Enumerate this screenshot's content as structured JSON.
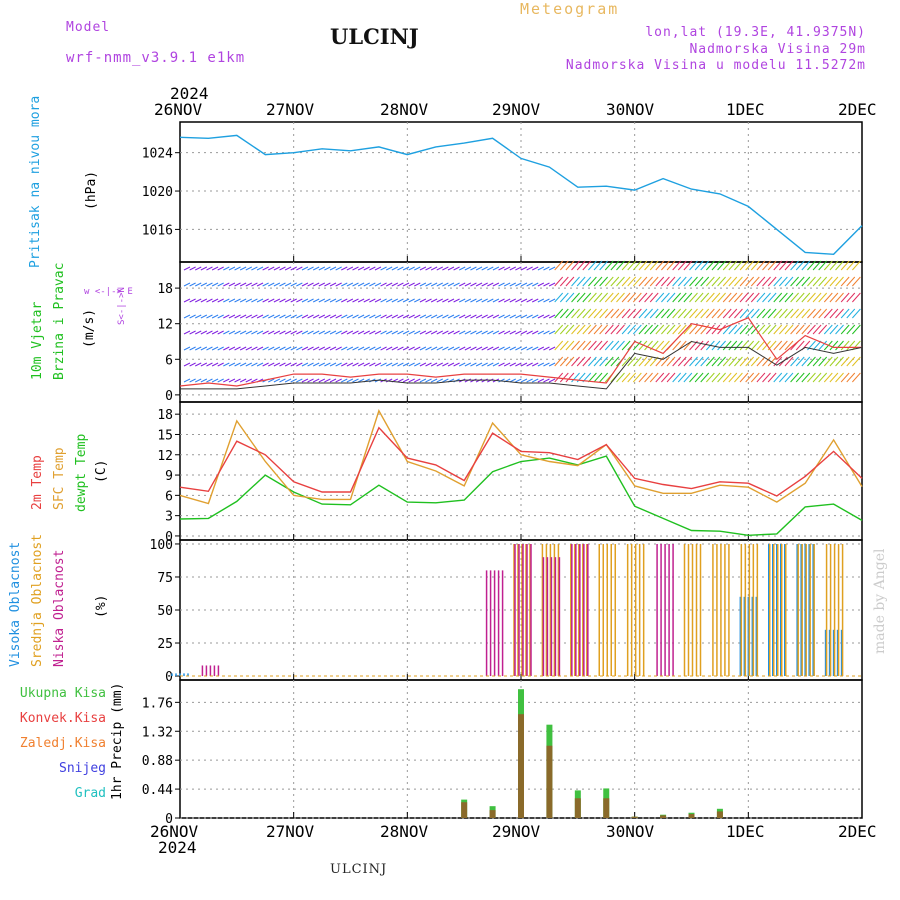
{
  "header": {
    "model_label": "Model",
    "model_name": "wrf-nmm_v3.9.1 e1km",
    "station": "ULCINJ",
    "meteogram": "Meteogram",
    "lonlat": "lon,lat (19.3E, 41.9375N)",
    "height": "Nadmorska Visina 29m",
    "model_height": "Nadmorska Visina u modelu 11.5272m",
    "year_top": "2024",
    "year_bottom": "2024",
    "footer_station": "ULCINJ",
    "credit": "made by Angel"
  },
  "dates": [
    "26NOV",
    "27NOV",
    "28NOV",
    "29NOV",
    "30NOV",
    "1DEC",
    "2DEC"
  ],
  "colors": {
    "pressure": "#1ea0e0",
    "temp2m": "#e84040",
    "sfc": "#e0a030",
    "dewpt": "#20c020",
    "high_cloud": "#2090e0",
    "mid_cloud": "#e0a020",
    "low_cloud": "#c02090",
    "total_precip": "#40c040",
    "conv_precip": "#e84040",
    "frozen_precip": "#f08030",
    "snow": "#4040e0",
    "grad": "#20c0c0"
  },
  "panels": {
    "pressure": {
      "label": "Pritisak na nivou mora",
      "unit": "(hPa)"
    },
    "wind": {
      "label1": "10m Vjetar",
      "label2": "Brzina i Pravac",
      "unit": "(m/s)",
      "compass_text": "w <-|-> E",
      "compass_ns": "S<-|->N"
    },
    "temp": {
      "label1": "2m Temp",
      "label2": "SFC Temp",
      "label3": "dewpt Temp",
      "unit": "(C)"
    },
    "cloud": {
      "label1": "Visoka Oblacnost",
      "label2": "Srednja Oblacnost",
      "label3": "Niska Oblacnost",
      "unit": "(%)"
    },
    "precip": {
      "label1": "Ukupna Kisa",
      "label2": "Konvek.Kisa",
      "label3": "Zaledj.Kisa",
      "label4": "Snijeg",
      "label5": "Grad",
      "unit": "1hr Precip (mm)"
    }
  },
  "chart_data": [
    {
      "type": "line",
      "name": "pressure",
      "x": [
        "26NOV 00",
        "26NOV 06",
        "26NOV 12",
        "26NOV 18",
        "27NOV 00",
        "27NOV 06",
        "27NOV 12",
        "27NOV 18",
        "28NOV 00",
        "28NOV 06",
        "28NOV 12",
        "28NOV 18",
        "29NOV 00",
        "29NOV 06",
        "29NOV 12",
        "29NOV 18",
        "30NOV 00",
        "30NOV 06",
        "30NOV 12",
        "30NOV 18",
        "1DEC 00",
        "1DEC 06",
        "1DEC 12",
        "1DEC 18",
        "2DEC 00"
      ],
      "y_ticks": [
        1016,
        1020,
        1024
      ],
      "ylim": [
        1012.6,
        1027.2
      ],
      "series": [
        {
          "values": [
            1025.6,
            1025.5,
            1025.8,
            1023.8,
            1024.0,
            1024.4,
            1024.2,
            1024.6,
            1023.8,
            1024.6,
            1025.0,
            1025.5,
            1023.4,
            1022.5,
            1020.4,
            1020.5,
            1020.1,
            1021.3,
            1020.2,
            1019.7,
            1018.4,
            1016.0,
            1013.6,
            1013.4,
            1016.4
          ]
        }
      ]
    },
    {
      "type": "line",
      "name": "wind",
      "y_ticks": [
        0,
        6,
        12,
        18
      ],
      "ylim": [
        -1.2,
        22.4
      ],
      "series": [
        {
          "values": [
            1.5,
            2.0,
            1.5,
            2.5,
            3.5,
            3.5,
            3.0,
            3.5,
            3.5,
            3.0,
            3.5,
            3.5,
            3.5,
            3.0,
            2.5,
            2.0,
            9.0,
            7.0,
            12.0,
            11.0,
            13.0,
            6.0,
            10.0,
            8.0,
            8.0
          ]
        },
        {
          "values": [
            1.0,
            1.0,
            1.0,
            1.5,
            2.0,
            2.0,
            2.0,
            2.5,
            2.0,
            2.0,
            2.5,
            2.5,
            2.0,
            2.0,
            1.5,
            1.0,
            7.0,
            6.0,
            9.0,
            8.0,
            8.0,
            5.0,
            8.0,
            7.0,
            8.0
          ]
        }
      ]
    },
    {
      "type": "line",
      "name": "temperature",
      "y_ticks": [
        0,
        3,
        6,
        9,
        12,
        15,
        18
      ],
      "ylim": [
        -0.6,
        19.8
      ],
      "series": [
        {
          "values": [
            7.2,
            6.6,
            14.0,
            12.0,
            8.0,
            6.5,
            6.5,
            16.0,
            11.5,
            10.5,
            8.2,
            15.2,
            12.5,
            12.3,
            11.3,
            13.5,
            8.5,
            7.6,
            7.0,
            8.0,
            7.8,
            5.9,
            8.8,
            12.5,
            8.5
          ]
        },
        {
          "values": [
            6.0,
            4.8,
            17.0,
            11.0,
            6.0,
            5.4,
            5.4,
            18.5,
            11.0,
            9.6,
            7.4,
            16.7,
            12.0,
            11.0,
            10.4,
            13.5,
            7.4,
            6.3,
            6.3,
            7.5,
            7.2,
            5.0,
            7.8,
            14.2,
            7.3
          ]
        },
        {
          "values": [
            2.5,
            2.6,
            5.1,
            9.0,
            6.5,
            4.7,
            4.6,
            7.5,
            5.0,
            4.9,
            5.3,
            9.5,
            11.0,
            11.5,
            10.5,
            11.8,
            4.4,
            2.6,
            0.8,
            0.7,
            0.1,
            0.3,
            4.3,
            4.7,
            2.3
          ]
        }
      ]
    },
    {
      "type": "bar",
      "name": "cloud",
      "y_ticks": [
        0,
        25,
        50,
        75,
        100
      ],
      "ylim": [
        -3,
        103
      ],
      "series": [
        {
          "values": [
            2,
            0,
            0,
            0,
            0,
            0,
            0,
            0,
            0,
            0,
            0,
            0,
            0,
            0,
            0,
            0,
            0,
            0,
            0,
            0,
            60,
            100,
            100,
            35,
            0
          ]
        },
        {
          "values": [
            0,
            0,
            0,
            0,
            0,
            0,
            0,
            0,
            0,
            0,
            0,
            0,
            100,
            100,
            100,
            100,
            100,
            0,
            100,
            100,
            100,
            100,
            100,
            100,
            0
          ]
        },
        {
          "values": [
            0,
            8,
            0,
            0,
            0,
            0,
            0,
            0,
            0,
            0,
            0,
            80,
            100,
            90,
            100,
            0,
            0,
            100,
            0,
            0,
            0,
            0,
            0,
            0,
            0
          ]
        }
      ]
    },
    {
      "type": "bar",
      "name": "precipitation",
      "y_ticks": [
        0,
        0.44,
        0.88,
        1.32,
        1.76
      ],
      "ylim": [
        0,
        2.1
      ],
      "series": [
        {
          "values": [
            0,
            0,
            0,
            0,
            0,
            0,
            0,
            0,
            0,
            0,
            0.28,
            0.18,
            1.96,
            1.42,
            0.42,
            0.45,
            0.02,
            0.05,
            0.08,
            0.14,
            0,
            0,
            0,
            0,
            0
          ]
        },
        {
          "values": [
            0,
            0,
            0,
            0,
            0,
            0,
            0,
            0,
            0,
            0,
            0.24,
            0.12,
            1.58,
            1.1,
            0.3,
            0.3,
            0.02,
            0.04,
            0.06,
            0.1,
            0,
            0,
            0,
            0,
            0
          ]
        }
      ]
    }
  ]
}
